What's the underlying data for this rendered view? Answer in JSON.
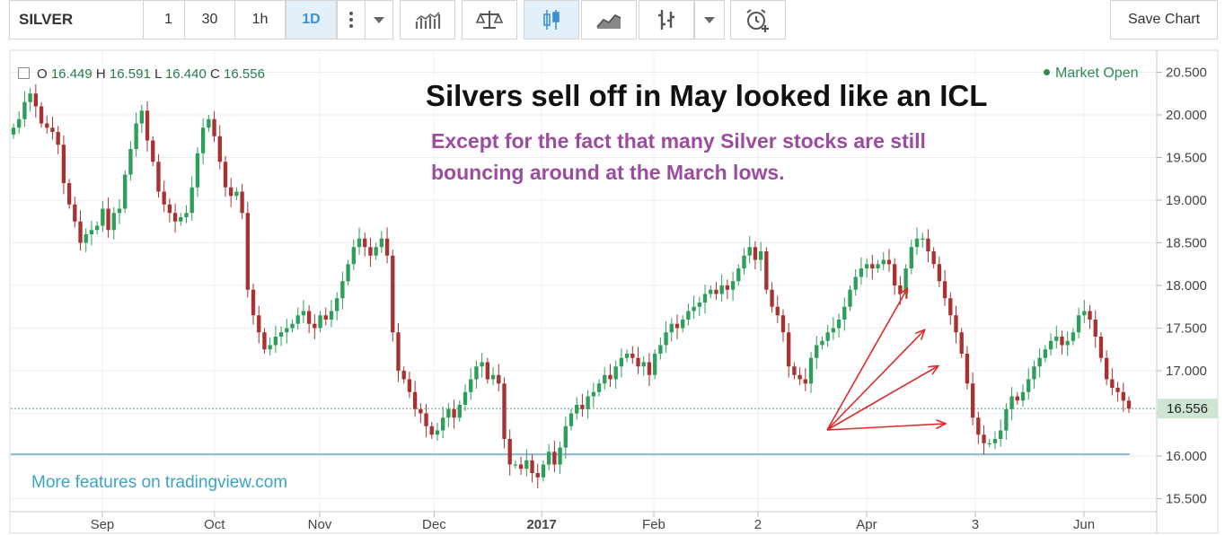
{
  "toolbar": {
    "symbol": "SILVER",
    "resolutions": [
      "1",
      "30",
      "1h",
      "1D"
    ],
    "active_resolution": "1D",
    "save_label": "Save Chart"
  },
  "legend": {
    "o_label": "O",
    "o_value": "16.449",
    "h_label": "H",
    "h_value": "16.591",
    "l_label": "L",
    "l_value": "16.440",
    "c_label": "C",
    "c_value": "16.556"
  },
  "market_status": "Market Open",
  "annotation": {
    "headline": "Silvers sell off in May looked like an ICL",
    "sub_line1": "Except for the fact that many Silver stocks are still",
    "sub_line2": "bouncing around at the March lows."
  },
  "watermark": "More features on tradingview.com",
  "colors": {
    "up": "#2e9e5b",
    "down": "#a83232",
    "arrow": "#dd2a2a",
    "price_label_bg": "#cfe5d4",
    "active_resolution": "#3a91d4",
    "text_purple": "#9b4c9f"
  },
  "chart_data": {
    "type": "candlestick",
    "y_axis": {
      "min": 15.5,
      "max": 20.5,
      "ticks": [
        "20.500",
        "20.000",
        "19.500",
        "19.000",
        "18.500",
        "18.000",
        "17.500",
        "17.000",
        "16.500",
        "16.000",
        "15.500"
      ]
    },
    "x_axis": {
      "ticks": [
        {
          "label": "Sep",
          "bold": false,
          "frac": 0.08
        },
        {
          "label": "Oct",
          "bold": false,
          "frac": 0.178
        },
        {
          "label": "Nov",
          "bold": false,
          "frac": 0.27
        },
        {
          "label": "Dec",
          "bold": false,
          "frac": 0.37
        },
        {
          "label": "2017",
          "bold": true,
          "frac": 0.464
        },
        {
          "label": "Feb",
          "bold": false,
          "frac": 0.562
        },
        {
          "label": "2",
          "bold": false,
          "frac": 0.653
        },
        {
          "label": "Apr",
          "bold": false,
          "frac": 0.748
        },
        {
          "label": "3",
          "bold": false,
          "frac": 0.843
        },
        {
          "label": "Jun",
          "bold": false,
          "frac": 0.938
        }
      ]
    },
    "last_price": "16.556",
    "last_price_value": 16.556,
    "support_level": 16.02,
    "closes": [
      19.85,
      19.95,
      20.15,
      20.25,
      20.1,
      19.9,
      19.85,
      19.8,
      19.65,
      19.2,
      18.95,
      18.75,
      18.5,
      18.6,
      18.65,
      18.7,
      18.9,
      18.65,
      18.85,
      18.9,
      19.3,
      19.6,
      19.9,
      20.05,
      19.7,
      19.45,
      19.1,
      18.95,
      18.85,
      18.75,
      18.8,
      18.85,
      19.15,
      19.55,
      19.85,
      19.95,
      19.75,
      19.45,
      19.15,
      19.05,
      19.1,
      18.85,
      17.95,
      17.65,
      17.45,
      17.25,
      17.3,
      17.4,
      17.45,
      17.5,
      17.55,
      17.65,
      17.7,
      17.55,
      17.5,
      17.65,
      17.6,
      17.7,
      17.85,
      18.05,
      18.25,
      18.45,
      18.55,
      18.45,
      18.35,
      18.45,
      18.55,
      18.35,
      17.45,
      17.0,
      16.9,
      16.75,
      16.55,
      16.5,
      16.35,
      16.25,
      16.3,
      16.45,
      16.55,
      16.45,
      16.6,
      16.75,
      16.9,
      17.05,
      17.1,
      16.9,
      16.95,
      16.85,
      16.2,
      15.9,
      15.9,
      15.85,
      15.95,
      15.8,
      15.75,
      15.9,
      16.05,
      15.9,
      16.1,
      16.35,
      16.5,
      16.6,
      16.55,
      16.7,
      16.75,
      16.85,
      16.95,
      16.9,
      17.05,
      17.15,
      17.2,
      17.15,
      17.05,
      17.1,
      16.95,
      17.2,
      17.3,
      17.45,
      17.55,
      17.5,
      17.6,
      17.7,
      17.75,
      17.8,
      17.9,
      17.95,
      17.9,
      18.0,
      17.95,
      18.05,
      18.2,
      18.35,
      18.45,
      18.3,
      18.4,
      17.95,
      17.75,
      17.65,
      17.45,
      17.05,
      16.95,
      16.9,
      16.85,
      17.15,
      17.3,
      17.35,
      17.45,
      17.5,
      17.6,
      17.75,
      17.95,
      18.1,
      18.2,
      18.25,
      18.2,
      18.25,
      18.3,
      18.25,
      18.0,
      17.9,
      18.2,
      18.45,
      18.55,
      18.55,
      18.4,
      18.25,
      18.05,
      17.85,
      17.65,
      17.45,
      17.2,
      16.85,
      16.45,
      16.25,
      16.15,
      16.15,
      16.2,
      16.3,
      16.55,
      16.7,
      16.65,
      16.75,
      16.9,
      17.05,
      17.15,
      17.25,
      17.35,
      17.4,
      17.3,
      17.35,
      17.45,
      17.65,
      17.7,
      17.6,
      17.4,
      17.15,
      16.9,
      16.8,
      16.75,
      16.65,
      16.556
    ]
  }
}
